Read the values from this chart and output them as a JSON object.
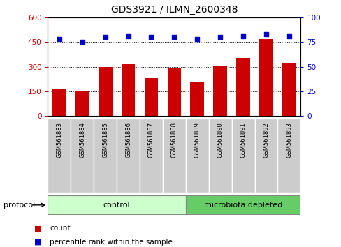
{
  "title": "GDS3921 / ILMN_2600348",
  "samples": [
    "GSM561883",
    "GSM561884",
    "GSM561885",
    "GSM561886",
    "GSM561887",
    "GSM561888",
    "GSM561889",
    "GSM561890",
    "GSM561891",
    "GSM561892",
    "GSM561893"
  ],
  "counts": [
    165,
    148,
    298,
    315,
    230,
    292,
    210,
    308,
    355,
    468,
    322
  ],
  "percentile_ranks": [
    78,
    75,
    80,
    81,
    80,
    80,
    78,
    80,
    81,
    83,
    81
  ],
  "left_ylim": [
    0,
    600
  ],
  "left_yticks": [
    0,
    150,
    300,
    450,
    600
  ],
  "right_ylim": [
    0,
    100
  ],
  "right_yticks": [
    0,
    25,
    50,
    75,
    100
  ],
  "bar_color": "#cc0000",
  "dot_color": "#0000cc",
  "left_tick_color": "#cc0000",
  "right_tick_color": "#0000cc",
  "grid_color": "#000000",
  "n_control": 6,
  "n_micro": 5,
  "control_label": "control",
  "microbiota_label": "microbiota depleted",
  "protocol_label": "protocol",
  "legend_count": "count",
  "legend_percentile": "percentile rank within the sample",
  "control_color": "#ccffcc",
  "microbiota_color": "#66cc66",
  "xtick_bg": "#cccccc",
  "spine_color": "#aaaaaa"
}
